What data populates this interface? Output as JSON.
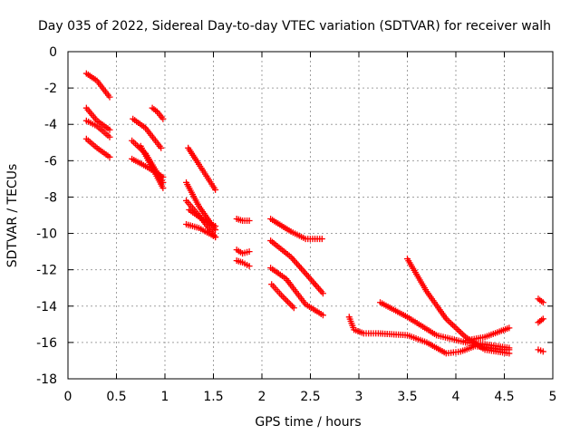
{
  "chart_data": {
    "type": "scatter",
    "title": "Day 035 of 2022, Sidereal Day-to-day VTEC variation (SDTVAR) for receiver walh",
    "xlabel": "GPS time / hours",
    "ylabel": "SDTVAR / TECUs",
    "xlim": [
      0,
      5
    ],
    "ylim": [
      -18,
      0
    ],
    "xticks": [
      0,
      0.5,
      1,
      1.5,
      2,
      2.5,
      3,
      3.5,
      4,
      4.5,
      5
    ],
    "xtick_labels": [
      "0",
      "0.5",
      "1",
      "1.5",
      "2",
      "2.5",
      "3",
      "3.5",
      "4",
      "4.5",
      "5"
    ],
    "yticks": [
      0,
      -2,
      -4,
      -6,
      -8,
      -10,
      -12,
      -14,
      -16,
      -18
    ],
    "ytick_labels": [
      "0",
      "-2",
      "-4",
      "-6",
      "-8",
      "-10",
      "-12",
      "-14",
      "-16",
      "-18"
    ],
    "grid": true,
    "marker": "+",
    "color": "#ff0000",
    "tracks": [
      {
        "name": "a1",
        "points": [
          [
            0.19,
            -1.2
          ],
          [
            0.3,
            -1.6
          ],
          [
            0.43,
            -2.5
          ]
        ]
      },
      {
        "name": "a2",
        "points": [
          [
            0.19,
            -3.1
          ],
          [
            0.3,
            -3.8
          ],
          [
            0.43,
            -4.3
          ]
        ]
      },
      {
        "name": "a3",
        "points": [
          [
            0.19,
            -3.8
          ],
          [
            0.3,
            -4.1
          ],
          [
            0.43,
            -4.7
          ]
        ]
      },
      {
        "name": "a4",
        "points": [
          [
            0.19,
            -4.8
          ],
          [
            0.3,
            -5.3
          ],
          [
            0.43,
            -5.8
          ]
        ]
      },
      {
        "name": "b1",
        "points": [
          [
            0.67,
            -3.7
          ],
          [
            0.8,
            -4.2
          ],
          [
            0.96,
            -5.3
          ]
        ]
      },
      {
        "name": "b2",
        "points": [
          [
            0.66,
            -4.9
          ],
          [
            0.8,
            -5.6
          ],
          [
            0.98,
            -7.2
          ]
        ]
      },
      {
        "name": "b3",
        "points": [
          [
            0.66,
            -5.9
          ],
          [
            0.8,
            -6.3
          ],
          [
            0.98,
            -6.9
          ]
        ]
      },
      {
        "name": "b4",
        "points": [
          [
            0.75,
            -5.2
          ],
          [
            0.85,
            -6.2
          ],
          [
            0.98,
            -7.5
          ]
        ]
      },
      {
        "name": "b5",
        "points": [
          [
            0.87,
            -3.1
          ],
          [
            0.92,
            -3.3
          ],
          [
            0.98,
            -3.7
          ]
        ]
      },
      {
        "name": "c1",
        "points": [
          [
            1.24,
            -5.3
          ],
          [
            1.35,
            -6.2
          ],
          [
            1.52,
            -7.6
          ]
        ]
      },
      {
        "name": "c2",
        "points": [
          [
            1.22,
            -7.2
          ],
          [
            1.35,
            -8.5
          ],
          [
            1.52,
            -9.8
          ]
        ]
      },
      {
        "name": "c3",
        "points": [
          [
            1.22,
            -8.2
          ],
          [
            1.35,
            -9.0
          ],
          [
            1.52,
            -10.2
          ]
        ]
      },
      {
        "name": "c4",
        "points": [
          [
            1.22,
            -9.5
          ],
          [
            1.35,
            -9.7
          ],
          [
            1.52,
            -10.2
          ]
        ]
      },
      {
        "name": "c5",
        "points": [
          [
            1.25,
            -8.7
          ],
          [
            1.38,
            -9.2
          ],
          [
            1.52,
            -9.6
          ]
        ]
      },
      {
        "name": "d1",
        "points": [
          [
            1.74,
            -9.2
          ],
          [
            1.8,
            -9.3
          ],
          [
            1.87,
            -9.3
          ]
        ]
      },
      {
        "name": "d2",
        "points": [
          [
            1.74,
            -10.9
          ],
          [
            1.8,
            -11.1
          ],
          [
            1.87,
            -11.0
          ]
        ]
      },
      {
        "name": "d3",
        "points": [
          [
            1.74,
            -11.5
          ],
          [
            1.8,
            -11.6
          ],
          [
            1.87,
            -11.8
          ]
        ]
      },
      {
        "name": "e1",
        "points": [
          [
            2.09,
            -9.2
          ],
          [
            2.3,
            -9.9
          ],
          [
            2.45,
            -10.3
          ],
          [
            2.62,
            -10.3
          ]
        ]
      },
      {
        "name": "e2",
        "points": [
          [
            2.09,
            -10.4
          ],
          [
            2.3,
            -11.3
          ],
          [
            2.45,
            -12.2
          ],
          [
            2.63,
            -13.3
          ]
        ]
      },
      {
        "name": "e3",
        "points": [
          [
            2.09,
            -11.9
          ],
          [
            2.25,
            -12.5
          ],
          [
            2.45,
            -13.9
          ],
          [
            2.63,
            -14.5
          ]
        ]
      },
      {
        "name": "e4",
        "points": [
          [
            2.1,
            -12.8
          ],
          [
            2.2,
            -13.4
          ],
          [
            2.33,
            -14.1
          ]
        ]
      },
      {
        "name": "f1",
        "points": [
          [
            2.9,
            -14.6
          ],
          [
            2.95,
            -15.3
          ],
          [
            3.05,
            -15.5
          ],
          [
            3.2,
            -15.5
          ],
          [
            3.5,
            -15.6
          ],
          [
            3.7,
            -16.0
          ],
          [
            3.9,
            -16.6
          ],
          [
            4.05,
            -16.5
          ],
          [
            4.2,
            -16.2
          ],
          [
            4.5,
            -16.4
          ],
          [
            4.55,
            -16.4
          ]
        ]
      },
      {
        "name": "f2",
        "points": [
          [
            3.22,
            -13.8
          ],
          [
            3.5,
            -14.6
          ],
          [
            3.8,
            -15.6
          ],
          [
            4.1,
            -16.0
          ],
          [
            4.3,
            -16.1
          ],
          [
            4.55,
            -16.3
          ]
        ]
      },
      {
        "name": "f3",
        "points": [
          [
            3.5,
            -11.4
          ],
          [
            3.7,
            -13.2
          ],
          [
            3.9,
            -14.7
          ],
          [
            4.1,
            -15.7
          ],
          [
            4.3,
            -16.4
          ],
          [
            4.55,
            -16.6
          ]
        ]
      },
      {
        "name": "f4",
        "points": [
          [
            4.1,
            -15.9
          ],
          [
            4.3,
            -15.7
          ],
          [
            4.45,
            -15.4
          ],
          [
            4.55,
            -15.2
          ]
        ]
      },
      {
        "name": "g1",
        "points": [
          [
            4.85,
            -13.6
          ],
          [
            4.9,
            -13.8
          ]
        ]
      },
      {
        "name": "g2",
        "points": [
          [
            4.85,
            -14.9
          ],
          [
            4.9,
            -14.7
          ]
        ]
      },
      {
        "name": "g3",
        "points": [
          [
            4.85,
            -16.4
          ],
          [
            4.9,
            -16.5
          ]
        ]
      }
    ]
  }
}
